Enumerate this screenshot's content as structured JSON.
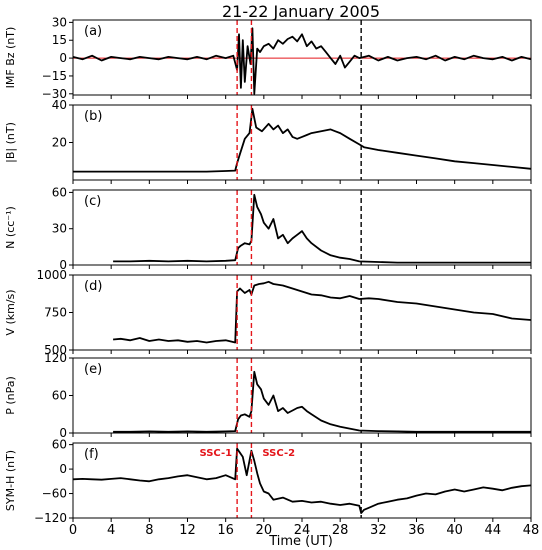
{
  "figure": {
    "title": "21-22 January 2005",
    "xlabel": "Time (UT)",
    "xlim": [
      0,
      48
    ],
    "xticks": [
      0,
      4,
      8,
      12,
      16,
      20,
      24,
      28,
      32,
      36,
      40,
      44,
      48
    ],
    "event_lines": [
      {
        "x": 17.2,
        "color": "#e4161b",
        "style": "dashed"
      },
      {
        "x": 18.7,
        "color": "#e4161b",
        "style": "dashed"
      },
      {
        "x": 30.2,
        "color": "#000000",
        "style": "dashed"
      }
    ],
    "annotations": [
      {
        "text": "SSC-1",
        "x": 17.2,
        "panel": "f",
        "color": "#e4161b"
      },
      {
        "text": "SSC-2",
        "x": 18.7,
        "panel": "f",
        "color": "#e4161b"
      }
    ]
  },
  "chart_data": [
    {
      "type": "line",
      "panel_label": "(a)",
      "ylabel": "IMF Bz (nT)",
      "ylim": [
        -31,
        32
      ],
      "yticks": [
        -30,
        -15,
        0,
        15,
        30
      ],
      "zero_line": {
        "y": 0,
        "color": "#e4161b"
      },
      "series": [
        {
          "x": [
            0,
            1,
            2,
            3,
            4,
            5,
            6,
            7,
            8,
            9,
            10,
            11,
            12,
            13,
            14,
            15,
            16,
            16.8,
            17.2,
            17.4,
            17.6,
            17.8,
            18.0,
            18.3,
            18.6,
            18.8,
            19.0,
            19.3,
            19.6,
            20,
            20.5,
            21,
            21.5,
            22,
            22.5,
            23,
            23.5,
            24,
            24.5,
            25,
            25.5,
            26,
            26.5,
            27,
            27.5,
            28,
            28.5,
            29,
            29.5,
            30,
            31,
            32,
            33,
            34,
            35,
            36,
            37,
            38,
            39,
            40,
            41,
            42,
            43,
            44,
            45,
            46,
            47,
            48
          ],
          "values": [
            1,
            -1,
            2,
            -2,
            1,
            0,
            -1,
            1,
            0,
            -1,
            1,
            0,
            -1,
            1,
            -1,
            2,
            0,
            2,
            -10,
            20,
            -25,
            15,
            -20,
            10,
            -5,
            25,
            -30,
            8,
            5,
            10,
            12,
            8,
            15,
            12,
            16,
            18,
            14,
            20,
            10,
            14,
            8,
            10,
            5,
            0,
            -5,
            2,
            -8,
            -3,
            2,
            0,
            2,
            -2,
            1,
            -2,
            0,
            1,
            -1,
            2,
            -2,
            1,
            -1,
            2,
            0,
            -1,
            1,
            -2,
            1,
            -1
          ]
        }
      ]
    },
    {
      "type": "line",
      "panel_label": "(b)",
      "ylabel": "|B| (nT)",
      "ylim": [
        0,
        40
      ],
      "yticks": [
        20,
        40
      ],
      "series": [
        {
          "x": [
            0,
            2,
            4,
            6,
            8,
            10,
            12,
            14,
            16,
            17,
            17.2,
            17.5,
            18,
            18.5,
            18.8,
            19.2,
            19.8,
            20.5,
            21,
            21.5,
            22,
            22.5,
            23,
            23.5,
            24,
            24.5,
            25,
            26,
            27,
            27.5,
            28,
            29,
            30,
            30.5,
            32,
            34,
            36,
            38,
            40,
            42,
            44,
            46,
            48
          ],
          "values": [
            4.5,
            4.5,
            4.5,
            4.5,
            4.5,
            4.5,
            4.5,
            4.5,
            4.8,
            5,
            9,
            14,
            22,
            25,
            38,
            28,
            26,
            30,
            27,
            29,
            25,
            27,
            23,
            22,
            23,
            24,
            25,
            26,
            27,
            26,
            25,
            22,
            19,
            17.5,
            16,
            14.5,
            13,
            11.5,
            10,
            9,
            8,
            7,
            6
          ]
        }
      ]
    },
    {
      "type": "line",
      "panel_label": "(c)",
      "ylabel": "N (cc⁻¹)",
      "ylim": [
        0,
        62
      ],
      "yticks": [
        0,
        30,
        60
      ],
      "series": [
        {
          "x": [
            4.2,
            6,
            8,
            10,
            12,
            14,
            16,
            17,
            17.3,
            17.6,
            18,
            18.5,
            18.7,
            19.0,
            19.3,
            19.7,
            20,
            20.5,
            21,
            21.5,
            22,
            22.5,
            23,
            23.5,
            24,
            24.5,
            25,
            26,
            27,
            28,
            29,
            30,
            32,
            34,
            36,
            40,
            44,
            48
          ],
          "values": [
            3,
            3,
            3.5,
            3,
            3.5,
            3,
            3.5,
            4,
            14,
            16,
            18,
            17,
            20,
            58,
            48,
            42,
            35,
            30,
            38,
            22,
            25,
            18,
            22,
            25,
            28,
            22,
            18,
            12,
            8,
            6,
            5,
            3,
            2.5,
            2,
            2,
            2,
            2,
            2
          ]
        }
      ]
    },
    {
      "type": "line",
      "panel_label": "(d)",
      "ylabel": "V (km/s)",
      "ylim": [
        500,
        1000
      ],
      "yticks": [
        500,
        750,
        1000
      ],
      "series": [
        {
          "x": [
            4.2,
            5,
            6,
            7,
            8,
            9,
            10,
            11,
            12,
            13,
            14,
            15,
            16,
            17,
            17.2,
            17.5,
            18,
            18.5,
            18.7,
            19,
            19.5,
            20,
            20.5,
            21,
            22,
            23,
            24,
            25,
            26,
            27,
            28,
            29,
            30,
            31,
            32,
            34,
            36,
            38,
            40,
            42,
            44,
            46,
            48
          ],
          "values": [
            570,
            575,
            565,
            580,
            560,
            570,
            560,
            565,
            555,
            560,
            550,
            560,
            565,
            550,
            890,
            910,
            880,
            900,
            870,
            930,
            940,
            945,
            955,
            940,
            930,
            910,
            890,
            870,
            865,
            850,
            845,
            860,
            840,
            845,
            840,
            820,
            810,
            790,
            770,
            750,
            740,
            710,
            700
          ]
        }
      ]
    },
    {
      "type": "line",
      "panel_label": "(e)",
      "ylabel": "P (nPa)",
      "ylim": [
        0,
        120
      ],
      "yticks": [
        0,
        60,
        120
      ],
      "series": [
        {
          "x": [
            4.2,
            6,
            8,
            10,
            12,
            14,
            16,
            17,
            17.3,
            17.6,
            18,
            18.5,
            18.7,
            19,
            19.3,
            19.7,
            20,
            20.5,
            21,
            21.5,
            22,
            22.5,
            23,
            23.5,
            24,
            24.5,
            25,
            26,
            27,
            28,
            29,
            30,
            32,
            34,
            36,
            40,
            44,
            48
          ],
          "values": [
            2,
            2,
            2.5,
            2,
            2.5,
            2,
            2.5,
            3,
            22,
            28,
            30,
            26,
            35,
            98,
            78,
            70,
            55,
            45,
            60,
            35,
            40,
            32,
            36,
            40,
            42,
            35,
            30,
            20,
            14,
            10,
            7,
            4,
            3,
            2.5,
            2,
            2,
            2,
            2
          ]
        }
      ]
    },
    {
      "type": "line",
      "panel_label": "(f)",
      "ylabel": "SYM-H (nT)",
      "ylim": [
        -120,
        64
      ],
      "yticks": [
        -120,
        -60,
        0,
        60
      ],
      "series": [
        {
          "x": [
            0,
            1,
            2,
            3,
            4,
            5,
            6,
            7,
            8,
            9,
            10,
            11,
            12,
            13,
            14,
            15,
            16,
            17,
            17.2,
            17.5,
            17.8,
            18.2,
            18.7,
            19,
            19.3,
            19.6,
            20,
            20.5,
            21,
            22,
            23,
            24,
            25,
            26,
            27,
            28,
            29,
            30,
            30.2,
            30.5,
            31,
            32,
            33,
            34,
            35,
            36,
            37,
            38,
            39,
            40,
            41,
            42,
            43,
            44,
            45,
            46,
            47,
            48
          ],
          "values": [
            -25,
            -24,
            -25,
            -26,
            -24,
            -22,
            -25,
            -28,
            -30,
            -25,
            -22,
            -18,
            -15,
            -20,
            -25,
            -22,
            -15,
            -25,
            50,
            40,
            30,
            -15,
            45,
            20,
            -10,
            -35,
            -55,
            -60,
            -75,
            -70,
            -80,
            -78,
            -82,
            -80,
            -85,
            -88,
            -85,
            -90,
            -108,
            -100,
            -95,
            -85,
            -80,
            -75,
            -72,
            -65,
            -60,
            -62,
            -55,
            -50,
            -55,
            -50,
            -45,
            -48,
            -52,
            -46,
            -42,
            -40
          ]
        }
      ]
    }
  ]
}
